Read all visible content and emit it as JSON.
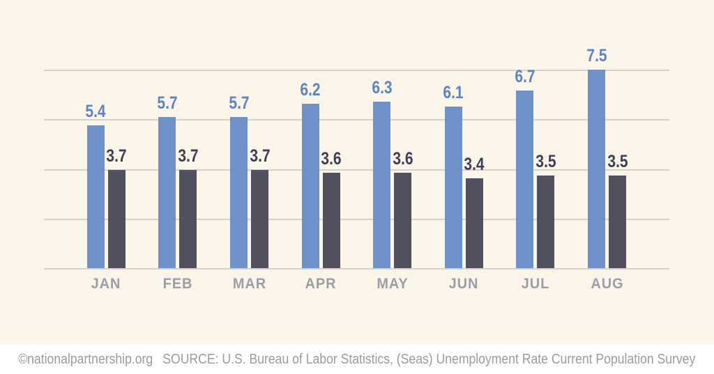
{
  "chart_data": {
    "type": "bar",
    "title": "",
    "categories": [
      "JAN",
      "FEB",
      "MAR",
      "APR",
      "MAY",
      "JUN",
      "JUL",
      "AUG"
    ],
    "series": [
      {
        "name": "blue-series",
        "bar_color": "#6e91c9",
        "label_color": "#5c83c5",
        "values": [
          5.4,
          5.7,
          5.7,
          6.2,
          6.3,
          6.1,
          6.7,
          7.5
        ]
      },
      {
        "name": "dark-series",
        "bar_color": "#50505f",
        "label_color": "#3d3e53",
        "values": [
          3.7,
          3.7,
          3.7,
          3.6,
          3.6,
          3.4,
          3.5,
          3.5
        ]
      }
    ],
    "ylim": [
      0,
      7.5
    ],
    "gridline_count": 5,
    "legend": "none",
    "value_labels": "above-bars",
    "value_label_decimals": 1
  },
  "footer": {
    "copyright": "©nationalpartnership.org",
    "source": "SOURCE: U.S. Bureau of Labor Statistics, (Seas) Unemployment Rate Current Population Survey"
  },
  "colors": {
    "chart_background": "#faf5e8",
    "footer_background": "#ffffff",
    "gridline": "#d6d2c8",
    "month_label": "#9d9da7",
    "footer_text": "#9b9b9b"
  }
}
